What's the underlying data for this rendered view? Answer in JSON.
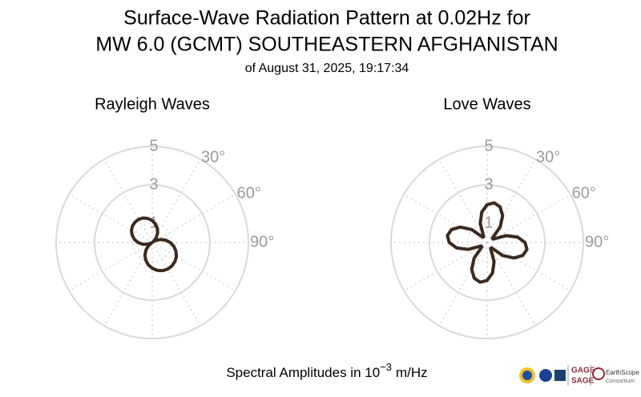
{
  "title": [
    "Surface-Wave Radiation Pattern at 0.02Hz for",
    "MW 6.0 (GCMT) SOUTHEASTERN AFGHANISTAN"
  ],
  "subtitle": "of August 31, 2025, 19:17:34",
  "footnote": "Spectral Amplitudes in 10",
  "footnote_exponent": "−3",
  "footnote_unit": "m/Hz",
  "logos": [
    "GAGE",
    "SAGE",
    "EarthScope",
    "Consortium"
  ],
  "chart_data": [
    {
      "type": "polar",
      "title": "Rayleigh Waves",
      "color": "#3b2a1e",
      "theta": [
        0,
        10,
        20,
        30,
        40,
        50,
        60,
        70,
        80,
        90,
        100,
        110,
        120,
        130,
        140,
        150,
        160,
        170,
        180,
        190,
        200,
        210,
        220,
        230,
        240,
        250,
        260,
        270,
        280,
        290,
        300,
        310,
        320,
        330,
        340,
        350
      ],
      "r": [
        1.14,
        0.98,
        0.78,
        0.56,
        0.31,
        0.06,
        0.2,
        0.46,
        0.71,
        0.94,
        1.14,
        1.31,
        1.45,
        1.54,
        1.59,
        1.6,
        1.56,
        1.47,
        1.34,
        1.18,
        0.98,
        0.76,
        0.51,
        0.26,
        0.01,
        0.26,
        0.51,
        0.74,
        0.94,
        1.11,
        1.25,
        1.34,
        1.39,
        1.4,
        1.36,
        1.27
      ],
      "rlim": [
        0,
        5
      ],
      "rticks": [
        1,
        3,
        5
      ],
      "theta_gridlines": [
        0,
        30,
        60,
        90,
        120,
        150,
        180,
        210,
        240,
        270,
        300,
        330
      ],
      "thetaticks": [
        {
          "value": 30,
          "label": "30°"
        },
        {
          "value": 60,
          "label": "60°"
        },
        {
          "value": 90,
          "label": "90°"
        }
      ]
    },
    {
      "type": "polar",
      "title": "Love Waves",
      "color": "#3b2a1e",
      "theta": [
        0,
        10,
        20,
        30,
        40,
        50,
        60,
        70,
        80,
        90,
        100,
        110,
        120,
        130,
        140,
        150,
        160,
        170,
        180,
        190,
        200,
        210,
        220,
        230,
        240,
        250,
        260,
        270,
        280,
        290,
        300,
        310,
        320,
        330,
        340,
        350
      ],
      "r": [
        1.97,
        2.1,
        1.97,
        1.61,
        1.05,
        0.36,
        0.36,
        1.05,
        1.61,
        1.97,
        2.1,
        1.97,
        1.61,
        1.05,
        0.36,
        0.36,
        1.05,
        1.61,
        1.97,
        2.1,
        1.97,
        1.61,
        1.05,
        0.36,
        0.36,
        1.05,
        1.61,
        1.97,
        2.1,
        1.97,
        1.61,
        1.05,
        0.36,
        0.36,
        1.05,
        1.61
      ],
      "rlim": [
        0,
        5
      ],
      "rticks": [
        1,
        3,
        5
      ],
      "theta_gridlines": [
        0,
        30,
        60,
        90,
        120,
        150,
        180,
        210,
        240,
        270,
        300,
        330
      ],
      "thetaticks": [
        {
          "value": 30,
          "label": "30°"
        },
        {
          "value": 60,
          "label": "60°"
        },
        {
          "value": 90,
          "label": "90°"
        }
      ]
    }
  ]
}
